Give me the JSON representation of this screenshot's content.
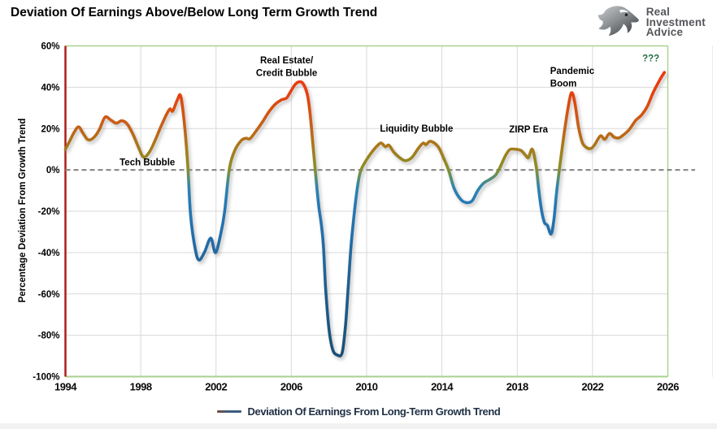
{
  "logo": {
    "lines": [
      "Real",
      "Investment",
      "Advice"
    ],
    "text_color": "#54565a"
  },
  "chart_data": {
    "type": "line",
    "title": "Deviation Of Earnings Above/Below Long Term Growth Trend",
    "ylabel": "Percentage Deviation From Growth Trend",
    "xlim": [
      1994,
      2026
    ],
    "ylim": [
      -100,
      60
    ],
    "x_ticks": [
      1994,
      1998,
      2002,
      2006,
      2010,
      2014,
      2018,
      2022,
      2026
    ],
    "y_ticks": [
      60,
      40,
      20,
      0,
      -20,
      -40,
      -60,
      -80,
      -100
    ],
    "y_tick_suffix": "%",
    "grid": true,
    "zero_line": {
      "style": "dashed",
      "color": "#8c8c8c"
    },
    "axis_colors": {
      "left": "#ae1d19",
      "top": "#a9d18e",
      "right": "#a9d18e",
      "bottom": "#a9d18e",
      "grid": "#d9d9d9"
    },
    "legend": {
      "label": "Deviation Of Earnings From Long-Term Growth Trend",
      "position": "bottom-center",
      "marker_colors": [
        "#7a4a38",
        "#3b5d7d"
      ],
      "text_color": "#1f3044"
    },
    "line_gradient": [
      {
        "value": 60,
        "color": "#ef2f08"
      },
      {
        "value": 38,
        "color": "#e63f0c"
      },
      {
        "value": 28,
        "color": "#d55311"
      },
      {
        "value": 20,
        "color": "#c26316"
      },
      {
        "value": 13,
        "color": "#ae7418"
      },
      {
        "value": 7,
        "color": "#9c821c"
      },
      {
        "value": 1,
        "color": "#8c8d24"
      },
      {
        "value": -3,
        "color": "#5f9061"
      },
      {
        "value": -8,
        "color": "#2f85ad"
      },
      {
        "value": -16,
        "color": "#2779b6"
      },
      {
        "value": -35,
        "color": "#226ca6"
      },
      {
        "value": -60,
        "color": "#1f5e8c"
      },
      {
        "value": -100,
        "color": "#1b4b6e"
      }
    ],
    "annotations": [
      {
        "lines": [
          "Tech Bubble"
        ],
        "x": 1998.35,
        "y": 2.2,
        "align": "middle",
        "color": "#000000"
      },
      {
        "lines": [
          "Real Estate/",
          "Credit Bubble"
        ],
        "x": 2005.75,
        "y": 51.5,
        "align": "middle",
        "color": "#000000"
      },
      {
        "lines": [
          "Liquidity Bubble"
        ],
        "x": 2012.65,
        "y": 18.6,
        "align": "middle",
        "color": "#000000"
      },
      {
        "lines": [
          "ZIRP Era"
        ],
        "x": 2018.6,
        "y": 18.2,
        "align": "middle",
        "color": "#000000"
      },
      {
        "lines": [
          "Pandemic",
          "Boom"
        ],
        "x": 2019.75,
        "y": 46.5,
        "align": "start",
        "color": "#000000"
      },
      {
        "lines": [
          "???"
        ],
        "x": 2025.1,
        "y": 52.5,
        "align": "middle",
        "color": "#1f6e40"
      }
    ],
    "series": [
      {
        "name": "Deviation Of Earnings From Long-Term Growth Trend",
        "points": [
          [
            1994.0,
            10
          ],
          [
            1994.2,
            13.5
          ],
          [
            1994.45,
            18
          ],
          [
            1994.7,
            20.8
          ],
          [
            1994.95,
            17.5
          ],
          [
            1995.2,
            14.6
          ],
          [
            1995.5,
            15.6
          ],
          [
            1995.8,
            19.5
          ],
          [
            1996.1,
            25.5
          ],
          [
            1996.4,
            24.2
          ],
          [
            1996.7,
            22.6
          ],
          [
            1997.0,
            23.8
          ],
          [
            1997.3,
            22
          ],
          [
            1997.6,
            17
          ],
          [
            1997.9,
            10.5
          ],
          [
            1998.15,
            6.2
          ],
          [
            1998.45,
            8.5
          ],
          [
            1998.75,
            14
          ],
          [
            1999.05,
            20.5
          ],
          [
            1999.35,
            26.5
          ],
          [
            1999.55,
            29.5
          ],
          [
            1999.7,
            28.5
          ],
          [
            1999.95,
            34
          ],
          [
            2000.12,
            35.8
          ],
          [
            2000.3,
            24
          ],
          [
            2000.5,
            2
          ],
          [
            2000.65,
            -22
          ],
          [
            2000.9,
            -38.5
          ],
          [
            2001.1,
            -43.6
          ],
          [
            2001.4,
            -39.5
          ],
          [
            2001.72,
            -33
          ],
          [
            2001.97,
            -40
          ],
          [
            2002.25,
            -31
          ],
          [
            2002.46,
            -20
          ],
          [
            2002.7,
            0
          ],
          [
            2003.0,
            9.5
          ],
          [
            2003.35,
            14.3
          ],
          [
            2003.6,
            15.3
          ],
          [
            2003.8,
            15.1
          ],
          [
            2004.1,
            18.5
          ],
          [
            2004.45,
            23
          ],
          [
            2004.8,
            28
          ],
          [
            2005.15,
            31.8
          ],
          [
            2005.5,
            34
          ],
          [
            2005.75,
            34.8
          ],
          [
            2006.0,
            38.5
          ],
          [
            2006.2,
            41.3
          ],
          [
            2006.4,
            42.6
          ],
          [
            2006.62,
            41.8
          ],
          [
            2006.85,
            36.5
          ],
          [
            2007.0,
            27
          ],
          [
            2007.15,
            12
          ],
          [
            2007.3,
            -3
          ],
          [
            2007.45,
            -17
          ],
          [
            2007.58,
            -25.5
          ],
          [
            2007.7,
            -36
          ],
          [
            2007.82,
            -57
          ],
          [
            2008.0,
            -77
          ],
          [
            2008.2,
            -87
          ],
          [
            2008.45,
            -89.6
          ],
          [
            2008.7,
            -88.5
          ],
          [
            2008.88,
            -75
          ],
          [
            2009.02,
            -57
          ],
          [
            2009.18,
            -36
          ],
          [
            2009.38,
            -18
          ],
          [
            2009.55,
            -6
          ],
          [
            2009.7,
            0
          ],
          [
            2010.0,
            5
          ],
          [
            2010.35,
            9.5
          ],
          [
            2010.6,
            12
          ],
          [
            2010.78,
            13
          ],
          [
            2011.0,
            11.2
          ],
          [
            2011.18,
            12
          ],
          [
            2011.45,
            8.5
          ],
          [
            2011.75,
            6
          ],
          [
            2012.05,
            4.5
          ],
          [
            2012.4,
            6
          ],
          [
            2012.75,
            10.5
          ],
          [
            2013.0,
            13
          ],
          [
            2013.15,
            12.2
          ],
          [
            2013.35,
            13.8
          ],
          [
            2013.6,
            13
          ],
          [
            2013.85,
            10.5
          ],
          [
            2014.1,
            5.5
          ],
          [
            2014.35,
            0
          ],
          [
            2014.65,
            -9
          ],
          [
            2015.0,
            -14.3
          ],
          [
            2015.3,
            -15.8
          ],
          [
            2015.6,
            -15
          ],
          [
            2015.9,
            -10
          ],
          [
            2016.2,
            -6.5
          ],
          [
            2016.55,
            -4.5
          ],
          [
            2016.85,
            -2.5
          ],
          [
            2017.1,
            1.5
          ],
          [
            2017.35,
            6.5
          ],
          [
            2017.6,
            9.8
          ],
          [
            2017.9,
            10
          ],
          [
            2018.2,
            9.4
          ],
          [
            2018.45,
            7
          ],
          [
            2018.6,
            6
          ],
          [
            2018.8,
            10
          ],
          [
            2019.0,
            2
          ],
          [
            2019.15,
            -10
          ],
          [
            2019.3,
            -20
          ],
          [
            2019.45,
            -25.5
          ],
          [
            2019.6,
            -26.8
          ],
          [
            2019.8,
            -31
          ],
          [
            2019.95,
            -24
          ],
          [
            2020.1,
            -10
          ],
          [
            2020.28,
            3
          ],
          [
            2020.5,
            18
          ],
          [
            2020.7,
            30
          ],
          [
            2020.88,
            37.3
          ],
          [
            2021.05,
            33
          ],
          [
            2021.25,
            21
          ],
          [
            2021.45,
            13.5
          ],
          [
            2021.65,
            11
          ],
          [
            2021.9,
            10.3
          ],
          [
            2022.1,
            12
          ],
          [
            2022.42,
            16.5
          ],
          [
            2022.65,
            14.8
          ],
          [
            2022.9,
            17.6
          ],
          [
            2023.15,
            15.8
          ],
          [
            2023.4,
            15.5
          ],
          [
            2023.65,
            17
          ],
          [
            2023.95,
            19.5
          ],
          [
            2024.3,
            24
          ],
          [
            2024.6,
            26.5
          ],
          [
            2024.9,
            30.5
          ],
          [
            2025.2,
            37
          ],
          [
            2025.45,
            41.5
          ],
          [
            2025.65,
            44.8
          ],
          [
            2025.82,
            47.2
          ]
        ]
      }
    ]
  }
}
